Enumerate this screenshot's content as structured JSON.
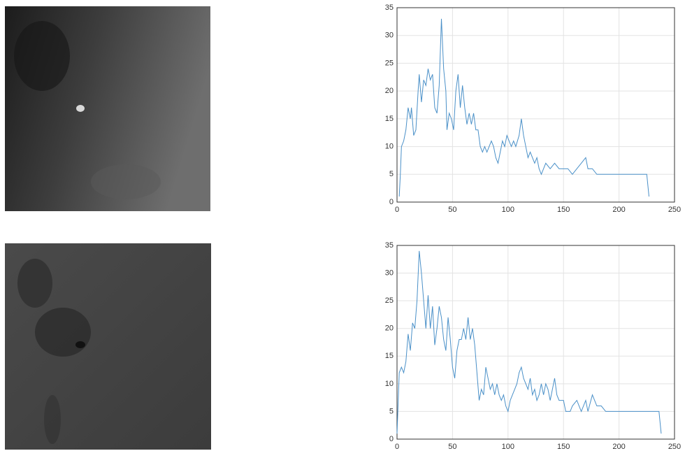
{
  "chart_data": [
    {
      "type": "line",
      "color": "#4a90c8",
      "grid": true,
      "xlim": [
        0,
        250
      ],
      "xticks": [
        0,
        50,
        100,
        150,
        200,
        250
      ],
      "ylim": [
        0,
        35
      ],
      "yticks": [
        0,
        5,
        10,
        15,
        20,
        25,
        30,
        35
      ],
      "x": [
        2,
        3,
        4,
        6,
        8,
        10,
        12,
        13,
        15,
        17,
        19,
        20,
        22,
        24,
        26,
        28,
        30,
        32,
        34,
        36,
        38,
        40,
        42,
        44,
        45,
        47,
        49,
        51,
        53,
        55,
        57,
        59,
        61,
        63,
        65,
        67,
        69,
        71,
        73,
        75,
        77,
        79,
        81,
        83,
        85,
        87,
        89,
        91,
        93,
        95,
        97,
        99,
        101,
        103,
        105,
        107,
        110,
        112,
        114,
        116,
        118,
        120,
        122,
        124,
        126,
        128,
        130,
        132,
        134,
        138,
        142,
        146,
        150,
        154,
        158,
        162,
        166,
        170,
        172,
        176,
        180,
        200,
        225,
        227
      ],
      "values": [
        1,
        5,
        10,
        11,
        13,
        17,
        15,
        17,
        12,
        13,
        20,
        23,
        18,
        22,
        21,
        24,
        22,
        23,
        17,
        16,
        21,
        33,
        24,
        20,
        13,
        16,
        15,
        13,
        20,
        23,
        17,
        21,
        17,
        14,
        16,
        14,
        16,
        13,
        13,
        10,
        9,
        10,
        9,
        10,
        11,
        10,
        8,
        7,
        9,
        11,
        10,
        12,
        11,
        10,
        11,
        10,
        12,
        15,
        12,
        10,
        8,
        9,
        8,
        7,
        8,
        6,
        5,
        6,
        7,
        6,
        7,
        6,
        6,
        6,
        5,
        6,
        7,
        8,
        6,
        6,
        5,
        5,
        5,
        1
      ]
    },
    {
      "type": "line",
      "color": "#4a90c8",
      "grid": true,
      "xlim": [
        0,
        250
      ],
      "xticks": [
        0,
        50,
        100,
        150,
        200,
        250
      ],
      "ylim": [
        0,
        35
      ],
      "yticks": [
        0,
        5,
        10,
        15,
        20,
        25,
        30,
        35
      ],
      "x": [
        0,
        2,
        4,
        6,
        8,
        10,
        12,
        14,
        16,
        18,
        20,
        22,
        24,
        26,
        28,
        30,
        32,
        34,
        36,
        38,
        40,
        42,
        44,
        46,
        48,
        50,
        52,
        54,
        56,
        58,
        60,
        62,
        64,
        66,
        68,
        70,
        72,
        74,
        76,
        78,
        80,
        82,
        84,
        86,
        88,
        90,
        92,
        94,
        96,
        98,
        100,
        102,
        104,
        106,
        108,
        110,
        112,
        114,
        116,
        118,
        120,
        122,
        124,
        126,
        128,
        130,
        132,
        134,
        136,
        138,
        140,
        142,
        144,
        146,
        150,
        152,
        156,
        158,
        162,
        166,
        170,
        172,
        176,
        180,
        184,
        188,
        200,
        220,
        236,
        238
      ],
      "values": [
        1,
        12,
        13,
        12,
        14,
        19,
        16,
        21,
        20,
        25,
        34,
        30,
        25,
        20,
        26,
        20,
        24,
        17,
        20,
        24,
        22,
        18,
        16,
        22,
        18,
        13,
        11,
        16,
        18,
        18,
        20,
        18,
        22,
        18,
        20,
        17,
        12,
        7,
        9,
        8,
        13,
        11,
        9,
        10,
        8,
        10,
        8,
        7,
        8,
        6,
        5,
        7,
        8,
        9,
        10,
        12,
        13,
        11,
        10,
        9,
        11,
        8,
        9,
        7,
        8,
        10,
        8,
        10,
        9,
        7,
        9,
        11,
        8,
        7,
        7,
        5,
        5,
        6,
        7,
        5,
        7,
        5,
        8,
        6,
        6,
        5,
        5,
        5,
        5,
        1
      ]
    }
  ]
}
